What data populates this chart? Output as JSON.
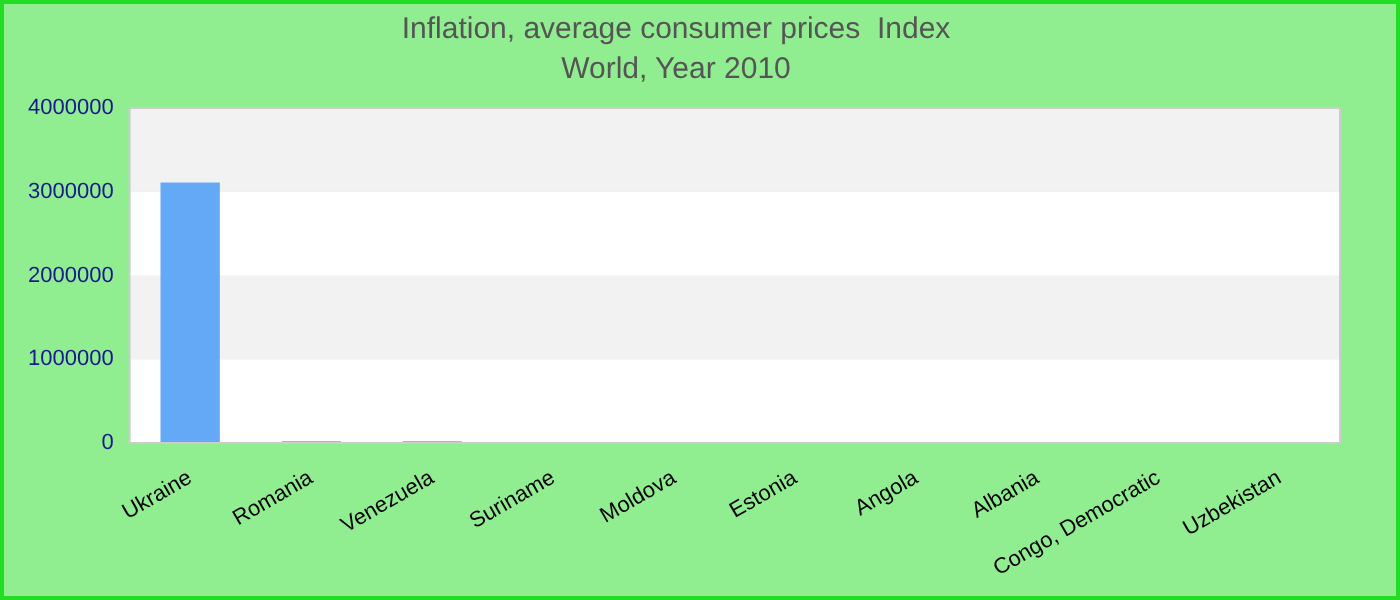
{
  "chart_data": {
    "type": "bar",
    "title": "Inflation, average consumer prices  Index",
    "subtitle": "World, Year 2010",
    "categories": [
      "Ukraine",
      "Romania",
      "Venezuela",
      "Suriname",
      "Moldova",
      "Estonia",
      "Angola",
      "Albania",
      "Congo, Democratic",
      "Uzbekistan"
    ],
    "values": [
      3110000,
      20000,
      20000,
      0,
      0,
      0,
      0,
      0,
      0,
      0
    ],
    "color": "#63a9f5",
    "ylim": [
      0,
      4000000
    ],
    "yticks": [
      0,
      1000000,
      2000000,
      3000000,
      4000000
    ],
    "grid": "y"
  }
}
